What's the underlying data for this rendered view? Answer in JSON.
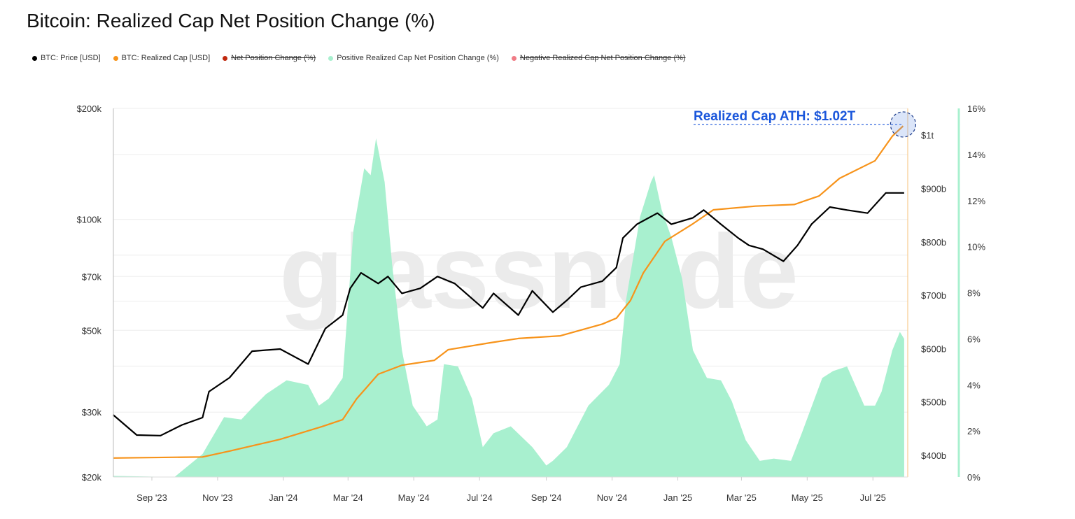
{
  "title": "Bitcoin: Realized Cap Net Position Change (%)",
  "legend": [
    {
      "label": "BTC: Price [USD]",
      "color": "#000000",
      "enabled": true
    },
    {
      "label": "BTC: Realized Cap [USD]",
      "color": "#f7931a",
      "enabled": true
    },
    {
      "label": "Net Position Change (%)",
      "color": "#c0280e",
      "enabled": false
    },
    {
      "label": "Positive Realized Cap Net Position Change (%)",
      "color": "#a8f0cf",
      "enabled": true
    },
    {
      "label": "Negative Realized Cap Net Position Change (%)",
      "color": "#f07c86",
      "enabled": false
    }
  ],
  "watermark": "glassnode",
  "chart_data": {
    "type": "line",
    "title": "Bitcoin: Realized Cap Net Position Change (%)",
    "x_range": [
      "2023-07-27",
      "2025-07-31"
    ],
    "x_ticks": [
      "Sep '23",
      "Nov '23",
      "Jan '24",
      "Mar '24",
      "May '24",
      "Jul '24",
      "Sep '24",
      "Nov '24",
      "Jan '25",
      "Mar '25",
      "May '25",
      "Jul '25"
    ],
    "x_tick_dates": [
      "2023-09-01",
      "2023-11-01",
      "2024-01-01",
      "2024-03-01",
      "2024-05-01",
      "2024-07-01",
      "2024-09-01",
      "2024-11-01",
      "2025-01-01",
      "2025-03-01",
      "2025-05-01",
      "2025-07-01"
    ],
    "y_left": {
      "label": "BTC: Price [USD]",
      "scale": "log",
      "range": [
        20000,
        200000
      ],
      "ticks": [
        200000,
        100000,
        70000,
        50000,
        30000,
        20000
      ],
      "tick_labels": [
        "$200k",
        "$100k",
        "$70k",
        "$50k",
        "$30k",
        "$20k"
      ]
    },
    "y_right_1": {
      "label": "BTC: Realized Cap [USD] (billions)",
      "scale": "linear",
      "range": [
        359,
        1060
      ],
      "ticks": [
        1000,
        900,
        800,
        700,
        600,
        500,
        400
      ],
      "tick_labels": [
        "$1t",
        "$900b",
        "$800b",
        "$700b",
        "$600b",
        "$500b",
        "$400b"
      ]
    },
    "y_right_2": {
      "label": "Net Position Change (%)",
      "scale": "linear",
      "range": [
        0,
        16
      ],
      "ticks": [
        16,
        14,
        12,
        10,
        8,
        6,
        4,
        2,
        0
      ],
      "tick_labels": [
        "16%",
        "14%",
        "12%",
        "10%",
        "8%",
        "6%",
        "4%",
        "2%",
        "0%"
      ]
    },
    "series": [
      {
        "name": "BTC: Price [USD]",
        "color": "#000000",
        "axis": "left",
        "points": [
          [
            "2023-07-27",
            29500
          ],
          [
            "2023-08-18",
            26000
          ],
          [
            "2023-09-09",
            25900
          ],
          [
            "2023-09-29",
            27700
          ],
          [
            "2023-10-18",
            29000
          ],
          [
            "2023-10-24",
            34100
          ],
          [
            "2023-11-12",
            37200
          ],
          [
            "2023-12-03",
            43900
          ],
          [
            "2023-12-29",
            44500
          ],
          [
            "2024-01-24",
            40500
          ],
          [
            "2024-02-09",
            50600
          ],
          [
            "2024-02-25",
            55000
          ],
          [
            "2024-03-03",
            65000
          ],
          [
            "2024-03-13",
            71600
          ],
          [
            "2024-03-29",
            67000
          ],
          [
            "2024-04-07",
            70000
          ],
          [
            "2024-04-20",
            63000
          ],
          [
            "2024-05-07",
            65000
          ],
          [
            "2024-05-23",
            70000
          ],
          [
            "2024-06-08",
            67000
          ],
          [
            "2024-07-04",
            57500
          ],
          [
            "2024-07-14",
            63000
          ],
          [
            "2024-08-06",
            55000
          ],
          [
            "2024-08-19",
            64000
          ],
          [
            "2024-09-07",
            56000
          ],
          [
            "2024-09-20",
            60300
          ],
          [
            "2024-10-03",
            65500
          ],
          [
            "2024-10-23",
            68000
          ],
          [
            "2024-11-05",
            74000
          ],
          [
            "2024-11-11",
            89000
          ],
          [
            "2024-11-24",
            97000
          ],
          [
            "2024-12-13",
            104000
          ],
          [
            "2024-12-26",
            97000
          ],
          [
            "2025-01-15",
            101000
          ],
          [
            "2025-01-25",
            106000
          ],
          [
            "2025-02-10",
            97000
          ],
          [
            "2025-02-26",
            89000
          ],
          [
            "2025-03-08",
            85000
          ],
          [
            "2025-03-21",
            83000
          ],
          [
            "2025-04-09",
            77000
          ],
          [
            "2025-04-22",
            85000
          ],
          [
            "2025-05-05",
            97000
          ],
          [
            "2025-05-22",
            108000
          ],
          [
            "2025-06-07",
            106000
          ],
          [
            "2025-06-26",
            104000
          ],
          [
            "2025-07-13",
            118000
          ],
          [
            "2025-07-30",
            118000
          ]
        ]
      },
      {
        "name": "BTC: Realized Cap [USD]",
        "color": "#f7931a",
        "axis": "right_1",
        "points": [
          [
            "2023-07-27",
            395
          ],
          [
            "2023-10-18",
            397
          ],
          [
            "2023-11-12",
            408
          ],
          [
            "2023-12-29",
            430
          ],
          [
            "2024-02-06",
            454
          ],
          [
            "2024-02-25",
            467
          ],
          [
            "2024-03-09",
            506
          ],
          [
            "2024-03-29",
            552
          ],
          [
            "2024-04-20",
            569
          ],
          [
            "2024-05-20",
            578
          ],
          [
            "2024-06-02",
            598
          ],
          [
            "2024-07-11",
            611
          ],
          [
            "2024-08-06",
            619
          ],
          [
            "2024-09-14",
            624
          ],
          [
            "2024-10-23",
            646
          ],
          [
            "2024-11-05",
            657
          ],
          [
            "2024-11-18",
            690
          ],
          [
            "2024-11-30",
            742
          ],
          [
            "2024-12-20",
            801
          ],
          [
            "2025-01-15",
            834
          ],
          [
            "2025-02-03",
            860
          ],
          [
            "2025-03-14",
            867
          ],
          [
            "2025-04-19",
            870
          ],
          [
            "2025-05-12",
            886
          ],
          [
            "2025-05-31",
            919
          ],
          [
            "2025-07-03",
            952
          ],
          [
            "2025-07-19",
            998
          ],
          [
            "2025-07-29",
            1017
          ]
        ]
      },
      {
        "name": "Positive Realized Cap Net Position Change (%)",
        "color": "#a8f0cf",
        "type": "area",
        "axis": "right_2",
        "points": [
          [
            "2023-07-27",
            0.05
          ],
          [
            "2023-09-22",
            0
          ],
          [
            "2023-10-18",
            1.0
          ],
          [
            "2023-11-07",
            2.6
          ],
          [
            "2023-11-23",
            2.5
          ],
          [
            "2023-12-03",
            3.0
          ],
          [
            "2023-12-16",
            3.6
          ],
          [
            "2024-01-04",
            4.2
          ],
          [
            "2024-01-24",
            4.0
          ],
          [
            "2024-02-03",
            3.1
          ],
          [
            "2024-02-12",
            3.4
          ],
          [
            "2024-02-25",
            4.3
          ],
          [
            "2024-03-06",
            10.7
          ],
          [
            "2024-03-16",
            13.4
          ],
          [
            "2024-03-22",
            13.1
          ],
          [
            "2024-03-27",
            14.7
          ],
          [
            "2024-04-04",
            12.8
          ],
          [
            "2024-04-11",
            9.2
          ],
          [
            "2024-04-20",
            5.5
          ],
          [
            "2024-04-30",
            3.1
          ],
          [
            "2024-05-13",
            2.2
          ],
          [
            "2024-05-23",
            2.5
          ],
          [
            "2024-05-29",
            4.9
          ],
          [
            "2024-06-11",
            4.8
          ],
          [
            "2024-06-24",
            3.4
          ],
          [
            "2024-07-04",
            1.3
          ],
          [
            "2024-07-14",
            1.9
          ],
          [
            "2024-07-30",
            2.2
          ],
          [
            "2024-08-19",
            1.3
          ],
          [
            "2024-09-01",
            0.5
          ],
          [
            "2024-09-07",
            0.7
          ],
          [
            "2024-09-20",
            1.3
          ],
          [
            "2024-10-10",
            3.1
          ],
          [
            "2024-10-29",
            4.0
          ],
          [
            "2024-11-08",
            4.9
          ],
          [
            "2024-11-14",
            7.7
          ],
          [
            "2024-11-27",
            11.3
          ],
          [
            "2024-12-07",
            12.8
          ],
          [
            "2024-12-10",
            13.1
          ],
          [
            "2024-12-17",
            11.6
          ],
          [
            "2024-12-26",
            10.4
          ],
          [
            "2025-01-05",
            8.6
          ],
          [
            "2025-01-15",
            5.5
          ],
          [
            "2025-01-28",
            4.3
          ],
          [
            "2025-02-10",
            4.2
          ],
          [
            "2025-02-20",
            3.3
          ],
          [
            "2025-03-05",
            1.6
          ],
          [
            "2025-03-18",
            0.7
          ],
          [
            "2025-03-31",
            0.8
          ],
          [
            "2025-04-16",
            0.7
          ],
          [
            "2025-04-26",
            1.9
          ],
          [
            "2025-05-15",
            4.3
          ],
          [
            "2025-05-25",
            4.6
          ],
          [
            "2025-06-07",
            4.8
          ],
          [
            "2025-06-23",
            3.1
          ],
          [
            "2025-07-03",
            3.1
          ],
          [
            "2025-07-09",
            3.7
          ],
          [
            "2025-07-19",
            5.5
          ],
          [
            "2025-07-26",
            6.3
          ],
          [
            "2025-07-30",
            6.0
          ]
        ]
      }
    ],
    "annotations": [
      {
        "text": "Realized Cap ATH: $1.02T",
        "date": "2025-07-29",
        "value": 1020,
        "axis": "right_1",
        "color": "#1a56db"
      }
    ],
    "grid": true,
    "legend_position": "top-left"
  }
}
